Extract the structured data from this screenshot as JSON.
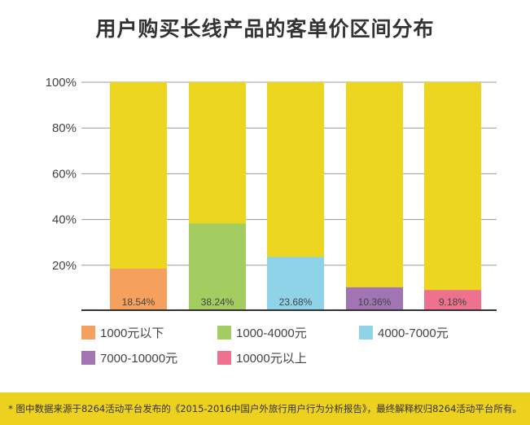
{
  "title": "用户购买长线产品的客单价区间分布",
  "footnote": "* 图中数据来源于8264活动平台发布的《2015-2016中国户外旅行用户行为分析报告》，最终解释权归8264活动平台所有。",
  "chart_data": {
    "type": "bar",
    "stacked_to_100": true,
    "title": "用户购买长线产品的客单价区间分布",
    "ylim": [
      0,
      100
    ],
    "yticks": [
      "20%",
      "40%",
      "60%",
      "80%",
      "100%"
    ],
    "ytick_values": [
      20,
      40,
      60,
      80,
      100
    ],
    "background_color": "#ecd620",
    "series": [
      {
        "name": "1000元以下",
        "value": 18.54,
        "label": "18.54%",
        "color": "#f5a05c"
      },
      {
        "name": "1000-4000元",
        "value": 38.24,
        "label": "38.24%",
        "color": "#a3cd60"
      },
      {
        "name": "4000-7000元",
        "value": 23.68,
        "label": "23.68%",
        "color": "#8fd3e8"
      },
      {
        "name": "7000-10000元",
        "value": 10.36,
        "label": "10.36%",
        "color": "#a174b4"
      },
      {
        "name": "10000元以上",
        "value": 9.18,
        "label": "9.18%",
        "color": "#ee7190"
      }
    ],
    "legend": "bottom"
  }
}
